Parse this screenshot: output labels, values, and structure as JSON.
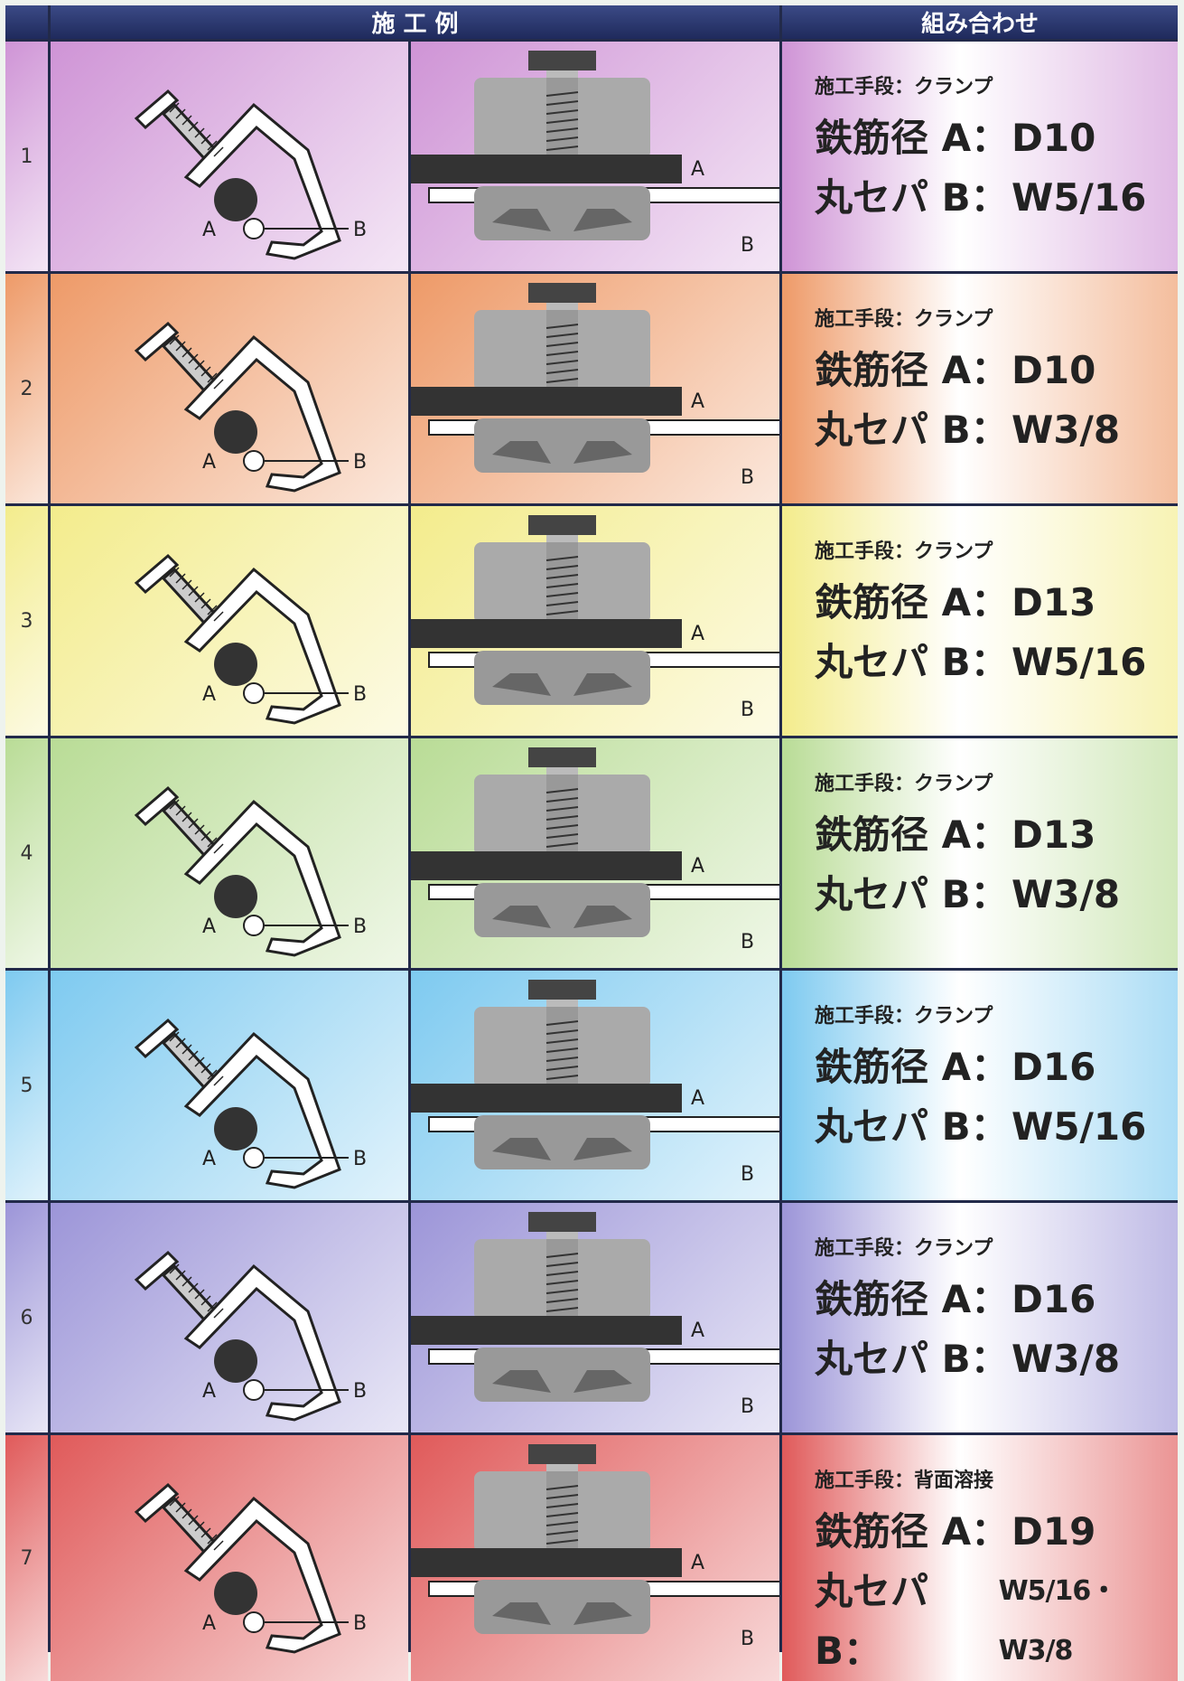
{
  "header": {
    "example": "施 工 例",
    "combination": "組み合わせ"
  },
  "labels": {
    "a": "A",
    "b": "B"
  },
  "rows": [
    {
      "no": "1",
      "method": "施工手段：クランプ",
      "rebar_label": "鉄筋径 A：",
      "rebar": "D10",
      "sep_label": "丸セパ B：",
      "sep": "W5/16"
    },
    {
      "no": "2",
      "method": "施工手段：クランプ",
      "rebar_label": "鉄筋径 A：",
      "rebar": "D10",
      "sep_label": "丸セパ B：",
      "sep": "W3/8"
    },
    {
      "no": "3",
      "method": "施工手段：クランプ",
      "rebar_label": "鉄筋径 A：",
      "rebar": "D13",
      "sep_label": "丸セパ B：",
      "sep": "W5/16"
    },
    {
      "no": "4",
      "method": "施工手段：クランプ",
      "rebar_label": "鉄筋径 A：",
      "rebar": "D13",
      "sep_label": "丸セパ B：",
      "sep": "W3/8"
    },
    {
      "no": "5",
      "method": "施工手段：クランプ",
      "rebar_label": "鉄筋径 A：",
      "rebar": "D16",
      "sep_label": "丸セパ B：",
      "sep": "W5/16"
    },
    {
      "no": "6",
      "method": "施工手段：クランプ",
      "rebar_label": "鉄筋径 A：",
      "rebar": "D16",
      "sep_label": "丸セパ B：",
      "sep": "W3/8"
    },
    {
      "no": "7",
      "method": "施工手段：背面溶接",
      "rebar_label": "鉄筋径 A：",
      "rebar": "D19",
      "sep_label": "丸セパ B：",
      "sep": "W5/16・W3/8"
    }
  ]
}
